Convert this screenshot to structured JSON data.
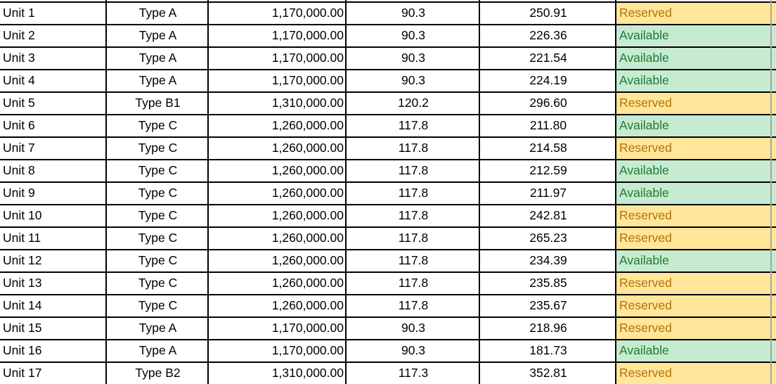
{
  "table": {
    "columns": [
      {
        "id": "unit",
        "align": "left"
      },
      {
        "id": "type",
        "align": "center"
      },
      {
        "id": "price",
        "align": "right"
      },
      {
        "id": "area",
        "align": "center"
      },
      {
        "id": "rate",
        "align": "center"
      },
      {
        "id": "status",
        "align": "left"
      }
    ],
    "rows": [
      [
        "Unit 1",
        "Type A",
        "1,170,000.00",
        "90.3",
        "250.91",
        "Reserved"
      ],
      [
        "Unit 2",
        "Type A",
        "1,170,000.00",
        "90.3",
        "226.36",
        "Available"
      ],
      [
        "Unit 3",
        "Type A",
        "1,170,000.00",
        "90.3",
        "221.54",
        "Available"
      ],
      [
        "Unit 4",
        "Type A",
        "1,170,000.00",
        "90.3",
        "224.19",
        "Available"
      ],
      [
        "Unit 5",
        "Type B1",
        "1,310,000.00",
        "120.2",
        "296.60",
        "Reserved"
      ],
      [
        "Unit 6",
        "Type C",
        "1,260,000.00",
        "117.8",
        "211.80",
        "Available"
      ],
      [
        "Unit 7",
        "Type C",
        "1,260,000.00",
        "117.8",
        "214.58",
        "Reserved"
      ],
      [
        "Unit 8",
        "Type C",
        "1,260,000.00",
        "117.8",
        "212.59",
        "Available"
      ],
      [
        "Unit 9",
        "Type C",
        "1,260,000.00",
        "117.8",
        "211.97",
        "Available"
      ],
      [
        "Unit 10",
        "Type C",
        "1,260,000.00",
        "117.8",
        "242.81",
        "Reserved"
      ],
      [
        "Unit 11",
        "Type C",
        "1,260,000.00",
        "117.8",
        "265.23",
        "Reserved"
      ],
      [
        "Unit 12",
        "Type C",
        "1,260,000.00",
        "117.8",
        "234.39",
        "Available"
      ],
      [
        "Unit 13",
        "Type C",
        "1,260,000.00",
        "117.8",
        "235.85",
        "Reserved"
      ],
      [
        "Unit 14",
        "Type C",
        "1,260,000.00",
        "117.8",
        "235.67",
        "Reserved"
      ],
      [
        "Unit 15",
        "Type A",
        "1,170,000.00",
        "90.3",
        "218.96",
        "Reserved"
      ],
      [
        "Unit 16",
        "Type A",
        "1,170,000.00",
        "90.3",
        "181.73",
        "Available"
      ],
      [
        "Unit 17",
        "Type B2",
        "1,310,000.00",
        "117.3",
        "352.81",
        "Reserved"
      ]
    ],
    "status_styles": {
      "Reserved": {
        "background": "#FFE699",
        "text_color": "#B5720B"
      },
      "Available": {
        "background": "#C7EBD1",
        "text_color": "#1F7B35"
      }
    },
    "gridline_colors": {
      "cell_border": "#000000",
      "sheet_gridline": "#A6A6A6"
    }
  }
}
